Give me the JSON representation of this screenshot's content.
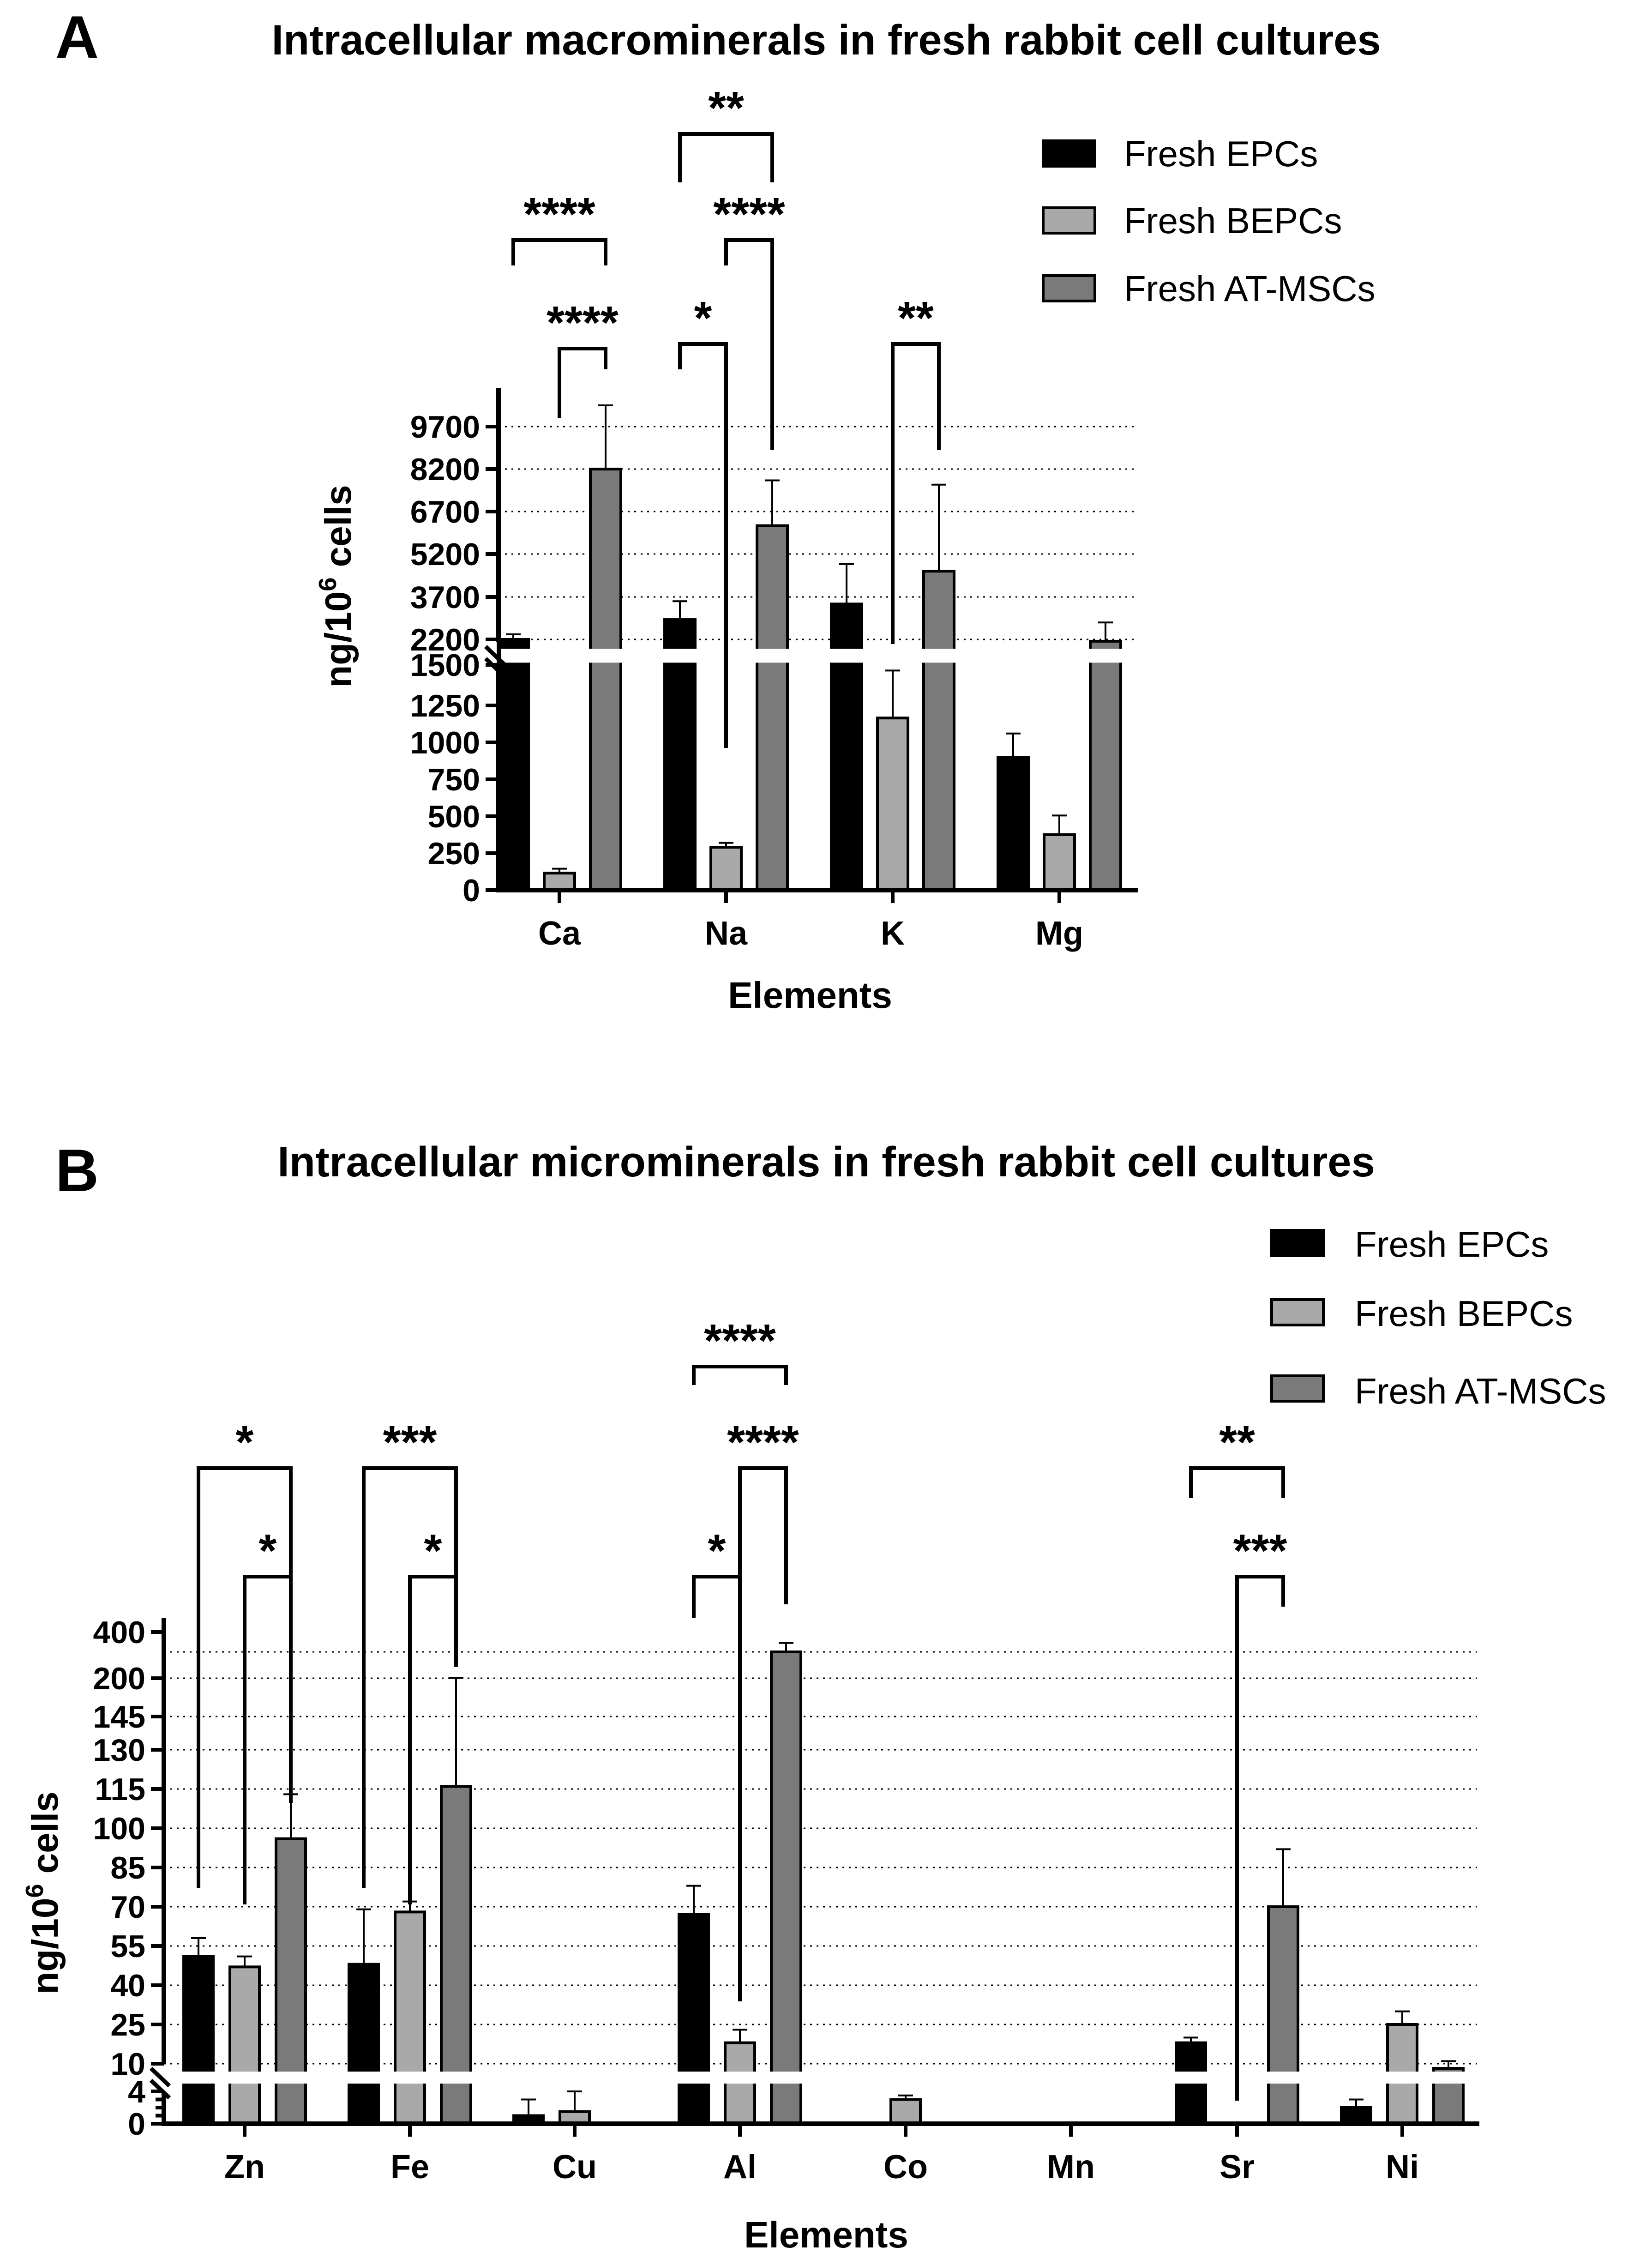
{
  "colors": {
    "epc": "#000000",
    "bepc": "#a9a9a9",
    "atmsc": "#7a7a7a",
    "bg": "#ffffff",
    "ink": "#000000"
  },
  "series_names": [
    "Fresh EPCs",
    "Fresh BEPCs",
    "Fresh AT-MSCs"
  ],
  "chart_data": [
    {
      "panel": "A",
      "type": "bar",
      "title": "Intracellular macrominerals in fresh rabbit cell cultures",
      "xlabel": "Elements",
      "ylabel": "ng/10",
      "ylabel_sup": "6",
      "ylabel_tail": " cells",
      "categories": [
        "Ca",
        "Na",
        "K",
        "Mg"
      ],
      "y_break": {
        "lower": [
          0,
          1500
        ],
        "upper": [
          1500,
          11000
        ]
      },
      "lower_ticks": [
        "0",
        "250",
        "500",
        "750",
        "1000",
        "1250",
        "1500"
      ],
      "upper_ticks": [
        "2200",
        "3700",
        "5200",
        "6700",
        "8200",
        "9700"
      ],
      "series": [
        {
          "name": "Fresh EPCs",
          "values": [
            2200,
            2900,
            3450,
            900
          ],
          "errors": [
            180,
            650,
            1400,
            160
          ]
        },
        {
          "name": "Fresh BEPCs",
          "values": [
            115,
            290,
            1165,
            375
          ],
          "errors": [
            30,
            30,
            300,
            130
          ]
        },
        {
          "name": "Fresh AT-MSCs",
          "values": [
            8200,
            6200,
            4600,
            2150
          ],
          "errors": [
            2250,
            1600,
            3050,
            650
          ]
        }
      ],
      "significance": [
        {
          "category": "Ca",
          "pair": [
            0,
            2
          ],
          "label": "****"
        },
        {
          "category": "Ca",
          "pair": [
            1,
            2
          ],
          "label": "****"
        },
        {
          "category": "Na",
          "pair": [
            0,
            2
          ],
          "label": "**"
        },
        {
          "category": "Na",
          "pair": [
            1,
            2
          ],
          "label": "****"
        },
        {
          "category": "Na",
          "pair": [
            0,
            1
          ],
          "label": "*"
        },
        {
          "category": "K",
          "pair": [
            1,
            2
          ],
          "label": "**"
        }
      ]
    },
    {
      "panel": "B",
      "type": "bar",
      "title": "Intracellular microminerals in fresh rabbit cell cultures",
      "xlabel": "Elements",
      "ylabel": "ng/10",
      "ylabel_sup": "6",
      "ylabel_tail": " cells",
      "categories": [
        "Zn",
        "Fe",
        "Cu",
        "Al",
        "Co",
        "Mn",
        "Sr",
        "Ni"
      ],
      "y_break": {
        "lower": [
          0,
          4
        ],
        "upper": [
          4,
          400
        ]
      },
      "lower_ticks": [
        "0",
        "4"
      ],
      "upper_ticks": [
        "10",
        "25",
        "40",
        "55",
        "70",
        "85",
        "100",
        "115",
        "130",
        "145",
        "200",
        "400"
      ],
      "series": [
        {
          "name": "Fresh EPCs",
          "values": [
            51,
            48,
            1,
            67,
            0,
            0,
            18,
            2
          ],
          "errors": [
            7,
            21,
            2,
            11,
            0,
            0,
            2,
            1
          ]
        },
        {
          "name": "Fresh BEPCs",
          "values": [
            47,
            68,
            1.5,
            18,
            3,
            0,
            0,
            25
          ],
          "errors": [
            4,
            4,
            2.5,
            5,
            0.5,
            0,
            0,
            5
          ]
        },
        {
          "name": "Fresh AT-MSCs",
          "values": [
            96,
            116,
            0,
            300,
            0,
            0,
            70,
            9
          ],
          "errors": [
            17,
            85,
            0,
            45,
            0,
            0,
            22,
            2
          ]
        }
      ],
      "significance": [
        {
          "category": "Zn",
          "pair": [
            0,
            2
          ],
          "label": "*"
        },
        {
          "category": "Zn",
          "pair": [
            1,
            2
          ],
          "label": "*"
        },
        {
          "category": "Fe",
          "pair": [
            0,
            2
          ],
          "label": "***"
        },
        {
          "category": "Fe",
          "pair": [
            1,
            2
          ],
          "label": "*"
        },
        {
          "category": "Al",
          "pair": [
            0,
            2
          ],
          "label": "****"
        },
        {
          "category": "Al",
          "pair": [
            1,
            2
          ],
          "label": "****"
        },
        {
          "category": "Al",
          "pair": [
            0,
            1
          ],
          "label": "*"
        },
        {
          "category": "Sr",
          "pair": [
            0,
            2
          ],
          "label": "**"
        },
        {
          "category": "Sr",
          "pair": [
            1,
            2
          ],
          "label": "***"
        }
      ]
    }
  ]
}
